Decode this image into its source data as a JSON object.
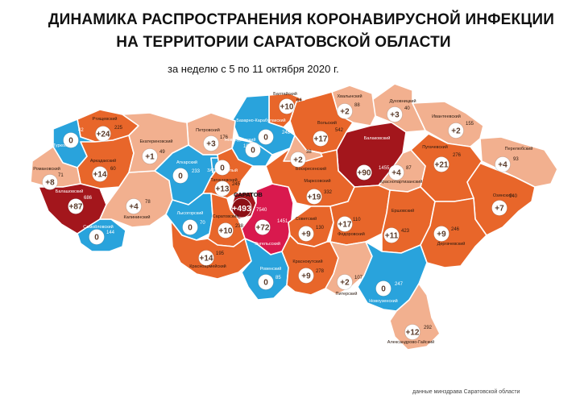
{
  "title_line1": "ДИНАМИКА РАСПРОСТРАНЕНИЯ КОРОНАВИРУСНОЙ ИНФЕКЦИИ",
  "title_line2": "НА ТЕРРИТОРИИ САРАТОВСКОЙ ОБЛАСТИ",
  "subtitle": "за неделю с 5 по 11 октября 2020 г.",
  "footer": "данные минздрава Саратовской области",
  "colors": {
    "light": "#f2b08f",
    "medium": "#e8662a",
    "dark": "#c63d12",
    "blue": "#29a3dc",
    "crimson": "#a3161c",
    "magenta": "#d9194e",
    "border": "#ffffff",
    "badge_fill": "#ffffff",
    "badge_text": "#5a3b2a"
  },
  "districts": [
    {
      "id": "ozinki",
      "name": "Озинский",
      "weekly": "+7",
      "total": "140",
      "fill": "medium"
    },
    {
      "id": "perelyub",
      "name": "Перелюбский",
      "weekly": "+4",
      "total": "93",
      "fill": "light"
    },
    {
      "id": "ivanteevka",
      "name": "Ивантеевский",
      "weekly": "+2",
      "total": "155",
      "fill": "light"
    },
    {
      "id": "pugachev",
      "name": "Пугачевский",
      "weekly": "+21",
      "total": "276",
      "fill": "medium"
    },
    {
      "id": "dukhovnitsky",
      "name": "Духовницкий",
      "weekly": "+3",
      "total": "40",
      "fill": "light"
    },
    {
      "id": "khvalynsk",
      "name": "Хвалынский",
      "weekly": "+2",
      "total": "88",
      "fill": "light"
    },
    {
      "id": "balakovo",
      "name": "Балаковский",
      "weekly": "+90",
      "total": "1455",
      "fill": "crimson"
    },
    {
      "id": "krasnopartizansky",
      "name": "Краснопартизанский",
      "weekly": "+4",
      "total": "87",
      "fill": "light"
    },
    {
      "id": "volsk",
      "name": "Вольский",
      "weekly": "+17",
      "total": "542",
      "fill": "medium"
    },
    {
      "id": "baltay",
      "name": "Балтайский",
      "weekly": "+10",
      "total": "64",
      "fill": "medium"
    },
    {
      "id": "bazarny_karabulak",
      "name": "Базарно-Карабулакский",
      "weekly": "0",
      "total": "248",
      "fill": "blue"
    },
    {
      "id": "novoburassky",
      "name": "Новобурасский",
      "weekly": "0",
      "total": "107",
      "fill": "blue"
    },
    {
      "id": "petrovsk",
      "name": "Петровский",
      "weekly": "+3",
      "total": "176",
      "fill": "light"
    },
    {
      "id": "rtishchevo",
      "name": "Ртищевский",
      "weekly": "+24",
      "total": "225",
      "fill": "medium"
    },
    {
      "id": "turki",
      "name": "Турковский",
      "weekly": "0",
      "total": "42",
      "fill": "blue"
    },
    {
      "id": "arkadak",
      "name": "Аркадакский",
      "weekly": "+14",
      "total": "60",
      "fill": "medium"
    },
    {
      "id": "romanovka",
      "name": "Романовский",
      "weekly": "+8",
      "total": "71",
      "fill": "light"
    },
    {
      "id": "balashov",
      "name": "Балашовский",
      "weekly": "+87",
      "total": "686",
      "fill": "crimson"
    },
    {
      "id": "samoylovka",
      "name": "Самойловский",
      "weekly": "0",
      "total": "144",
      "fill": "blue"
    },
    {
      "id": "kalininsk",
      "name": "Калининский",
      "weekly": "+4",
      "total": "78",
      "fill": "light"
    },
    {
      "id": "ekaterinovka",
      "name": "Екатериновский",
      "weekly": "+1",
      "total": "49",
      "fill": "light"
    },
    {
      "id": "atkarsk",
      "name": "Аткарский",
      "weekly": "0",
      "total": "233",
      "fill": "blue"
    },
    {
      "id": "zato_svetly",
      "name": "ЗАТО Светлый",
      "weekly": "0",
      "total": "",
      "fill": "blue"
    },
    {
      "id": "tatishchevo",
      "name": "Татищевский",
      "weekly": "+13",
      "total": "245",
      "fill": "medium"
    },
    {
      "id": "saratov",
      "name": "САРАТОВ",
      "weekly": "+493",
      "total": "7540",
      "fill": "crimson"
    },
    {
      "id": "engels",
      "name": "Энгельсский",
      "weekly": "+72",
      "total": "1451",
      "fill": "magenta"
    },
    {
      "id": "marks",
      "name": "Марксовский",
      "weekly": "+19",
      "total": "332",
      "fill": "medium"
    },
    {
      "id": "voskresenskoye",
      "name": "Воскресенский",
      "weekly": "+2",
      "total": "38",
      "fill": "light"
    },
    {
      "id": "lysye_gory",
      "name": "Лысогорский",
      "weekly": "0",
      "total": "70",
      "fill": "blue"
    },
    {
      "id": "saratovsky",
      "name": "Саратовский",
      "weekly": "+10",
      "total": "238",
      "fill": "medium"
    },
    {
      "id": "krasnoarmeysk",
      "name": "Красноармейский",
      "weekly": "+14",
      "total": "195",
      "fill": "medium"
    },
    {
      "id": "rovnoe",
      "name": "Ровенский",
      "weekly": "0",
      "total": "85",
      "fill": "blue"
    },
    {
      "id": "sovetskoye",
      "name": "Советский",
      "weekly": "+9",
      "total": "130",
      "fill": "medium"
    },
    {
      "id": "fedorovka",
      "name": "Федоровский",
      "weekly": "+17",
      "total": "110",
      "fill": "medium"
    },
    {
      "id": "ershov",
      "name": "Ершовский",
      "weekly": "+11",
      "total": "423",
      "fill": "medium"
    },
    {
      "id": "dergachi",
      "name": "Дергачевский",
      "weekly": "+9",
      "total": "246",
      "fill": "medium"
    },
    {
      "id": "krasny_kut",
      "name": "Краснокутский",
      "weekly": "+9",
      "total": "278",
      "fill": "medium"
    },
    {
      "id": "piterka",
      "name": "Питерский",
      "weekly": "+2",
      "total": "107",
      "fill": "light"
    },
    {
      "id": "novouzensk",
      "name": "Новоузенский",
      "weekly": "0",
      "total": "247",
      "fill": "blue"
    },
    {
      "id": "aleksandrov_gay",
      "name": "Александрово-Гайский",
      "weekly": "+12",
      "total": "292",
      "fill": "light"
    }
  ]
}
